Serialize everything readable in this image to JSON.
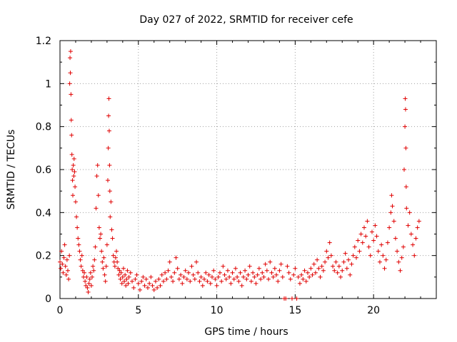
{
  "chart_data": {
    "type": "scatter",
    "title": "Day 027 of 2022, SRMTID for receiver cefe",
    "xlabel": "GPS time / hours",
    "ylabel": "SRMTID / TECUs",
    "xlim": [
      0,
      24
    ],
    "ylim": [
      0,
      1.2
    ],
    "x_ticks": [
      0,
      5,
      10,
      15,
      20
    ],
    "x_tick_labels": [
      "0",
      "5",
      "10",
      "15",
      "20"
    ],
    "y_ticks": [
      0,
      0.2,
      0.4,
      0.6,
      0.8,
      1.0,
      1.2
    ],
    "y_tick_labels": [
      "0",
      "0.2",
      "0.4",
      "0.6",
      "0.8",
      "1",
      "1.2"
    ],
    "grid": true,
    "marker": "+",
    "marker_color": "#e00000",
    "series": [
      {
        "name": "SRMTID",
        "points": [
          [
            0.0,
            0.17
          ],
          [
            0.05,
            0.14
          ],
          [
            0.1,
            0.22
          ],
          [
            0.15,
            0.16
          ],
          [
            0.2,
            0.12
          ],
          [
            0.25,
            0.19
          ],
          [
            0.3,
            0.25
          ],
          [
            0.35,
            0.15
          ],
          [
            0.4,
            0.11
          ],
          [
            0.45,
            0.18
          ],
          [
            0.5,
            0.13
          ],
          [
            0.55,
            0.09
          ],
          [
            0.6,
            0.2
          ],
          [
            0.62,
            1.0
          ],
          [
            0.64,
            1.12
          ],
          [
            0.66,
            1.05
          ],
          [
            0.68,
            1.15
          ],
          [
            0.7,
            0.95
          ],
          [
            0.72,
            0.83
          ],
          [
            0.74,
            0.76
          ],
          [
            0.76,
            0.67
          ],
          [
            0.78,
            0.6
          ],
          [
            0.8,
            0.55
          ],
          [
            0.82,
            0.48
          ],
          [
            0.85,
            0.62
          ],
          [
            0.88,
            0.57
          ],
          [
            0.9,
            0.65
          ],
          [
            0.93,
            0.59
          ],
          [
            0.96,
            0.52
          ],
          [
            1.0,
            0.45
          ],
          [
            1.05,
            0.38
          ],
          [
            1.1,
            0.33
          ],
          [
            1.15,
            0.28
          ],
          [
            1.2,
            0.25
          ],
          [
            1.25,
            0.22
          ],
          [
            1.3,
            0.18
          ],
          [
            1.35,
            0.15
          ],
          [
            1.4,
            0.2
          ],
          [
            1.45,
            0.13
          ],
          [
            1.5,
            0.1
          ],
          [
            1.55,
            0.12
          ],
          [
            1.6,
            0.08
          ],
          [
            1.65,
            0.06
          ],
          [
            1.7,
            0.1
          ],
          [
            1.75,
            0.05
          ],
          [
            1.8,
            0.03
          ],
          [
            1.85,
            0.07
          ],
          [
            1.9,
            0.09
          ],
          [
            1.95,
            0.12
          ],
          [
            2.0,
            0.06
          ],
          [
            2.05,
            0.1
          ],
          [
            2.1,
            0.15
          ],
          [
            2.15,
            0.13
          ],
          [
            2.2,
            0.18
          ],
          [
            2.25,
            0.24
          ],
          [
            2.3,
            0.42
          ],
          [
            2.35,
            0.57
          ],
          [
            2.4,
            0.62
          ],
          [
            2.45,
            0.48
          ],
          [
            2.5,
            0.33
          ],
          [
            2.55,
            0.28
          ],
          [
            2.6,
            0.3
          ],
          [
            2.65,
            0.22
          ],
          [
            2.7,
            0.17
          ],
          [
            2.75,
            0.14
          ],
          [
            2.8,
            0.19
          ],
          [
            2.85,
            0.11
          ],
          [
            2.9,
            0.08
          ],
          [
            2.95,
            0.15
          ],
          [
            3.0,
            0.25
          ],
          [
            3.05,
            0.55
          ],
          [
            3.08,
            0.7
          ],
          [
            3.1,
            0.85
          ],
          [
            3.12,
            0.93
          ],
          [
            3.14,
            0.78
          ],
          [
            3.16,
            0.62
          ],
          [
            3.18,
            0.5
          ],
          [
            3.2,
            0.38
          ],
          [
            3.25,
            0.45
          ],
          [
            3.3,
            0.32
          ],
          [
            3.35,
            0.28
          ],
          [
            3.4,
            0.2
          ],
          [
            3.45,
            0.17
          ],
          [
            3.5,
            0.15
          ],
          [
            3.55,
            0.19
          ],
          [
            3.6,
            0.22
          ],
          [
            3.65,
            0.17
          ],
          [
            3.7,
            0.14
          ],
          [
            3.75,
            0.11
          ],
          [
            3.8,
            0.13
          ],
          [
            3.85,
            0.09
          ],
          [
            3.9,
            0.12
          ],
          [
            3.95,
            0.07
          ],
          [
            4.0,
            0.1
          ],
          [
            4.05,
            0.14
          ],
          [
            4.1,
            0.08
          ],
          [
            4.15,
            0.11
          ],
          [
            4.2,
            0.06
          ],
          [
            4.25,
            0.09
          ],
          [
            4.3,
            0.13
          ],
          [
            4.35,
            0.07
          ],
          [
            4.4,
            0.1
          ],
          [
            4.5,
            0.12
          ],
          [
            4.6,
            0.08
          ],
          [
            4.7,
            0.05
          ],
          [
            4.8,
            0.09
          ],
          [
            4.9,
            0.11
          ],
          [
            5.0,
            0.07
          ],
          [
            5.1,
            0.04
          ],
          [
            5.2,
            0.08
          ],
          [
            5.3,
            0.1
          ],
          [
            5.4,
            0.06
          ],
          [
            5.5,
            0.09
          ],
          [
            5.6,
            0.05
          ],
          [
            5.7,
            0.07
          ],
          [
            5.8,
            0.1
          ],
          [
            5.9,
            0.06
          ],
          [
            6.0,
            0.04
          ],
          [
            6.1,
            0.08
          ],
          [
            6.2,
            0.05
          ],
          [
            6.3,
            0.09
          ],
          [
            6.4,
            0.06
          ],
          [
            6.5,
            0.11
          ],
          [
            6.6,
            0.08
          ],
          [
            6.7,
            0.12
          ],
          [
            6.8,
            0.09
          ],
          [
            6.9,
            0.13
          ],
          [
            7.0,
            0.17
          ],
          [
            7.1,
            0.1
          ],
          [
            7.2,
            0.08
          ],
          [
            7.3,
            0.12
          ],
          [
            7.4,
            0.19
          ],
          [
            7.5,
            0.14
          ],
          [
            7.6,
            0.09
          ],
          [
            7.7,
            0.11
          ],
          [
            7.8,
            0.07
          ],
          [
            7.9,
            0.1
          ],
          [
            8.0,
            0.13
          ],
          [
            8.1,
            0.09
          ],
          [
            8.2,
            0.12
          ],
          [
            8.3,
            0.08
          ],
          [
            8.4,
            0.15
          ],
          [
            8.5,
            0.11
          ],
          [
            8.6,
            0.09
          ],
          [
            8.7,
            0.17
          ],
          [
            8.8,
            0.12
          ],
          [
            8.9,
            0.08
          ],
          [
            9.0,
            0.1
          ],
          [
            9.1,
            0.06
          ],
          [
            9.2,
            0.09
          ],
          [
            9.3,
            0.12
          ],
          [
            9.4,
            0.08
          ],
          [
            9.5,
            0.11
          ],
          [
            9.6,
            0.07
          ],
          [
            9.7,
            0.1
          ],
          [
            9.8,
            0.13
          ],
          [
            9.9,
            0.09
          ],
          [
            10.0,
            0.06
          ],
          [
            10.1,
            0.1
          ],
          [
            10.2,
            0.12
          ],
          [
            10.3,
            0.08
          ],
          [
            10.4,
            0.15
          ],
          [
            10.5,
            0.11
          ],
          [
            10.6,
            0.09
          ],
          [
            10.7,
            0.13
          ],
          [
            10.8,
            0.1
          ],
          [
            10.9,
            0.07
          ],
          [
            11.0,
            0.12
          ],
          [
            11.1,
            0.09
          ],
          [
            11.2,
            0.14
          ],
          [
            11.3,
            0.1
          ],
          [
            11.4,
            0.08
          ],
          [
            11.5,
            0.12
          ],
          [
            11.6,
            0.06
          ],
          [
            11.7,
            0.1
          ],
          [
            11.8,
            0.13
          ],
          [
            11.9,
            0.09
          ],
          [
            12.0,
            0.11
          ],
          [
            12.1,
            0.15
          ],
          [
            12.2,
            0.08
          ],
          [
            12.3,
            0.12
          ],
          [
            12.4,
            0.1
          ],
          [
            12.5,
            0.07
          ],
          [
            12.6,
            0.11
          ],
          [
            12.7,
            0.14
          ],
          [
            12.8,
            0.09
          ],
          [
            12.9,
            0.12
          ],
          [
            13.0,
            0.1
          ],
          [
            13.1,
            0.16
          ],
          [
            13.2,
            0.13
          ],
          [
            13.3,
            0.09
          ],
          [
            13.4,
            0.17
          ],
          [
            13.5,
            0.12
          ],
          [
            13.6,
            0.1
          ],
          [
            13.7,
            0.14
          ],
          [
            13.8,
            0.11
          ],
          [
            13.9,
            0.08
          ],
          [
            14.0,
            0.13
          ],
          [
            14.1,
            0.16
          ],
          [
            14.2,
            0.1
          ],
          [
            14.3,
            0.0
          ],
          [
            14.4,
            0.0
          ],
          [
            14.5,
            0.15
          ],
          [
            14.6,
            0.12
          ],
          [
            14.7,
            0.09
          ],
          [
            14.8,
            0.0
          ],
          [
            14.9,
            0.11
          ],
          [
            15.0,
            0.14
          ],
          [
            15.1,
            0.0
          ],
          [
            15.2,
            0.1
          ],
          [
            15.3,
            0.07
          ],
          [
            15.4,
            0.11
          ],
          [
            15.5,
            0.09
          ],
          [
            15.6,
            0.13
          ],
          [
            15.7,
            0.08
          ],
          [
            15.8,
            0.12
          ],
          [
            15.9,
            0.1
          ],
          [
            16.0,
            0.14
          ],
          [
            16.1,
            0.11
          ],
          [
            16.2,
            0.16
          ],
          [
            16.3,
            0.12
          ],
          [
            16.4,
            0.18
          ],
          [
            16.5,
            0.14
          ],
          [
            16.6,
            0.1
          ],
          [
            16.7,
            0.15
          ],
          [
            16.8,
            0.13
          ],
          [
            16.9,
            0.17
          ],
          [
            17.0,
            0.22
          ],
          [
            17.1,
            0.19
          ],
          [
            17.2,
            0.26
          ],
          [
            17.3,
            0.2
          ],
          [
            17.4,
            0.15
          ],
          [
            17.5,
            0.13
          ],
          [
            17.6,
            0.17
          ],
          [
            17.7,
            0.12
          ],
          [
            17.8,
            0.15
          ],
          [
            17.9,
            0.1
          ],
          [
            18.0,
            0.13
          ],
          [
            18.1,
            0.17
          ],
          [
            18.2,
            0.21
          ],
          [
            18.3,
            0.14
          ],
          [
            18.4,
            0.18
          ],
          [
            18.5,
            0.11
          ],
          [
            18.6,
            0.16
          ],
          [
            18.7,
            0.2
          ],
          [
            18.8,
            0.24
          ],
          [
            18.9,
            0.19
          ],
          [
            19.0,
            0.27
          ],
          [
            19.1,
            0.22
          ],
          [
            19.2,
            0.3
          ],
          [
            19.3,
            0.26
          ],
          [
            19.4,
            0.33
          ],
          [
            19.5,
            0.29
          ],
          [
            19.6,
            0.36
          ],
          [
            19.7,
            0.24
          ],
          [
            19.8,
            0.2
          ],
          [
            19.9,
            0.31
          ],
          [
            20.0,
            0.27
          ],
          [
            20.1,
            0.34
          ],
          [
            20.2,
            0.29
          ],
          [
            20.3,
            0.22
          ],
          [
            20.4,
            0.17
          ],
          [
            20.5,
            0.25
          ],
          [
            20.6,
            0.2
          ],
          [
            20.7,
            0.14
          ],
          [
            20.8,
            0.18
          ],
          [
            20.9,
            0.26
          ],
          [
            21.0,
            0.33
          ],
          [
            21.1,
            0.4
          ],
          [
            21.15,
            0.48
          ],
          [
            21.2,
            0.43
          ],
          [
            21.3,
            0.36
          ],
          [
            21.4,
            0.28
          ],
          [
            21.5,
            0.22
          ],
          [
            21.6,
            0.17
          ],
          [
            21.7,
            0.13
          ],
          [
            21.8,
            0.19
          ],
          [
            21.9,
            0.24
          ],
          [
            21.95,
            0.6
          ],
          [
            22.0,
            0.8
          ],
          [
            22.02,
            0.93
          ],
          [
            22.04,
            0.88
          ],
          [
            22.06,
            0.7
          ],
          [
            22.08,
            0.52
          ],
          [
            22.1,
            0.42
          ],
          [
            22.2,
            0.34
          ],
          [
            22.3,
            0.4
          ],
          [
            22.4,
            0.3
          ],
          [
            22.5,
            0.25
          ],
          [
            22.6,
            0.2
          ],
          [
            22.7,
            0.28
          ],
          [
            22.8,
            0.33
          ],
          [
            22.9,
            0.36
          ]
        ]
      }
    ]
  }
}
